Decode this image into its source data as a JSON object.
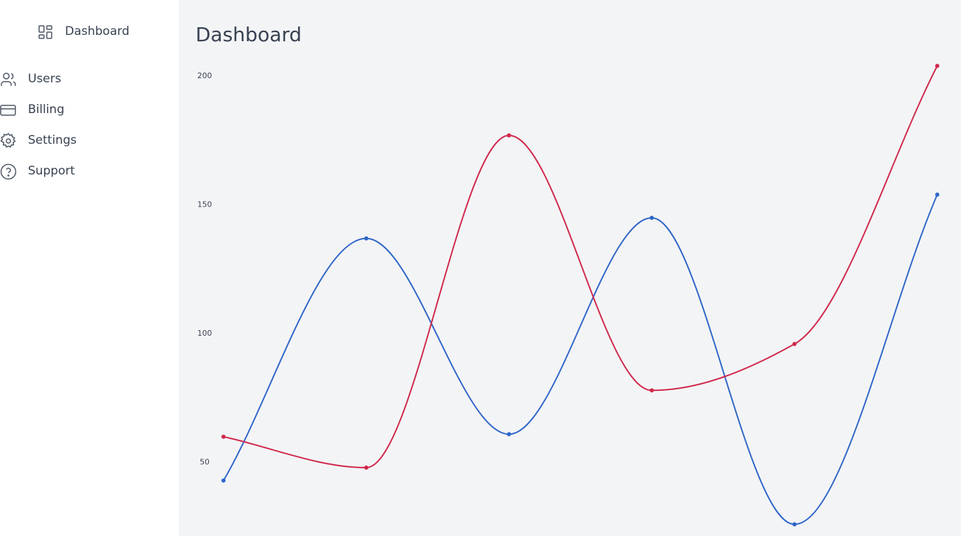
{
  "sidebar": {
    "items": [
      "Dashboard",
      "Users",
      "Billing",
      "Settings",
      "Support"
    ]
  },
  "header": {
    "title": "Dashboard"
  },
  "chart_data": {
    "type": "line",
    "categories": [
      null,
      null,
      null,
      null,
      null,
      null
    ],
    "series": [
      {
        "color": "#2f66c8",
        "values": [
          43,
          137,
          61,
          145,
          26,
          154
        ]
      },
      {
        "color": "#d0294b",
        "values": [
          60,
          48,
          177,
          78,
          96,
          204
        ]
      }
    ],
    "ylim": [
      22,
      206
    ],
    "yticks": [
      50,
      100,
      150,
      200
    ],
    "grid": false
  }
}
